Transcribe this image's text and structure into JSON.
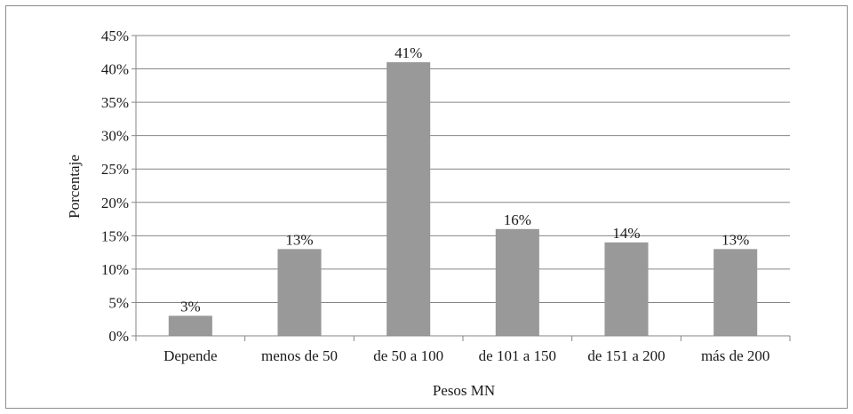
{
  "chart_data": {
    "type": "bar",
    "categories": [
      "Depende",
      "menos de 50",
      "de 50 a 100",
      "de 101 a 150",
      "de 151 a 200",
      "más de 200"
    ],
    "values": [
      3,
      13,
      41,
      16,
      14,
      13
    ],
    "value_labels": [
      "3%",
      "13%",
      "41%",
      "16%",
      "14%",
      "13%"
    ],
    "xlabel": "Pesos MN",
    "ylabel": "Porcentaje",
    "ylim": [
      0,
      45
    ],
    "yticks": [
      0,
      5,
      10,
      15,
      20,
      25,
      30,
      35,
      40,
      45
    ],
    "ytick_labels": [
      "0%",
      "5%",
      "10%",
      "15%",
      "20%",
      "25%",
      "30%",
      "35%",
      "40%",
      "45%"
    ],
    "grid": true,
    "legend": "none",
    "colors": {
      "bar": "#999999",
      "grid": "#868686",
      "axis": "#868686"
    }
  }
}
